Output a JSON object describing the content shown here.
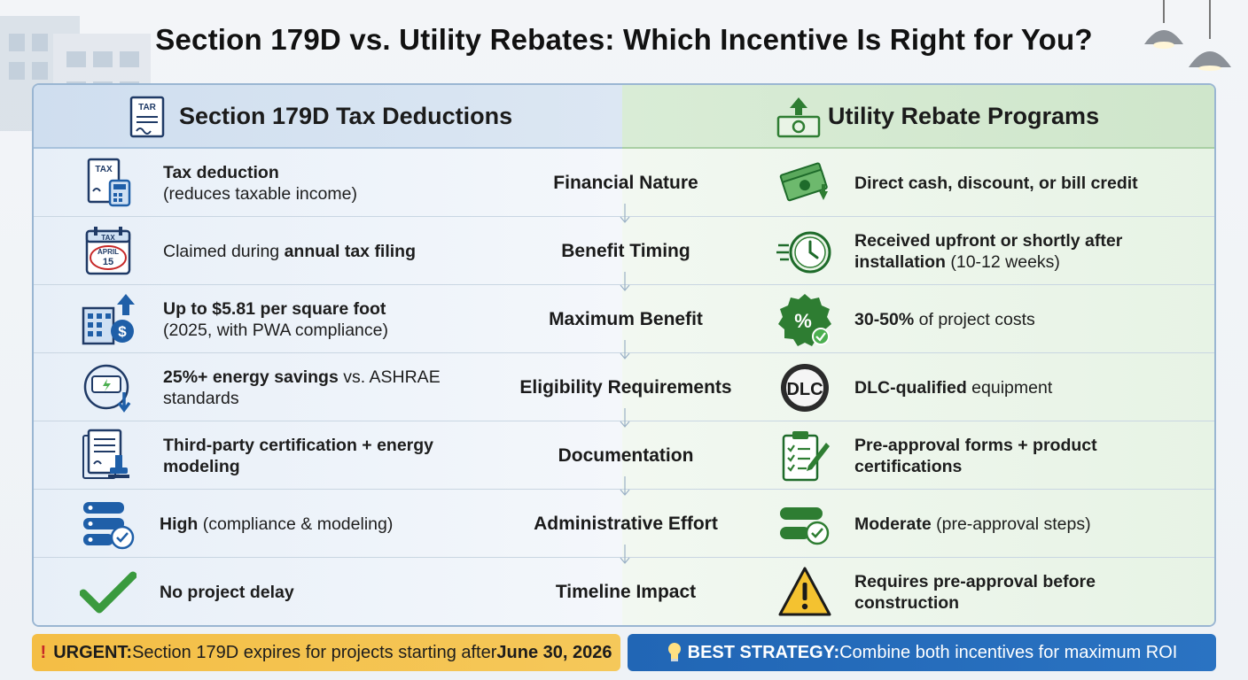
{
  "title": "Section 179D vs. Utility Rebates: Which Incentive Is Right for You?",
  "left_header": {
    "title": "Section 179D Tax Deductions",
    "icon": "tax-form-icon",
    "icon_label": "TAR"
  },
  "right_header": {
    "title": "Utility Rebate Programs",
    "icon": "cash-upload-icon"
  },
  "rows": [
    {
      "category": "Financial Nature",
      "left": {
        "bold": "Tax deduction",
        "normal": "(reduces taxable income)",
        "icon": "tax-calculator-icon",
        "icon_label": "TAX"
      },
      "right": {
        "bold": "Direct cash, discount, or bill credit",
        "normal": "",
        "icon": "cash-stack-icon"
      }
    },
    {
      "category": "Benefit Timing",
      "left": {
        "normal_before": "Claimed during ",
        "bold": "annual tax filing",
        "icon": "calendar-icon",
        "icon_label": "TAX",
        "icon_date": "APRIL",
        "icon_day": "15"
      },
      "right": {
        "bold": "Received upfront or shortly after",
        "bold2": "installation",
        "normal": " (10-12 weeks)",
        "icon": "fast-clock-icon"
      }
    },
    {
      "category": "Maximum Benefit",
      "left": {
        "bold": "Up to $5.81 per square foot",
        "normal": "(2025, with PWA compliance)",
        "icon": "building-dollar-icon"
      },
      "right": {
        "bold": "30-50%",
        "normal": " of project costs",
        "icon": "percent-badge-icon"
      }
    },
    {
      "category": "Eligibility Requirements",
      "left": {
        "bold": "25%+ energy savings",
        "normal": " vs. ASHRAE",
        "normal2": "standards",
        "icon": "energy-meter-icon"
      },
      "right": {
        "bold": "DLC-qualified",
        "normal": " equipment",
        "icon": "dlc-seal-icon",
        "icon_label": "DLC"
      },
      "_note": ""
    },
    {
      "category": "Documentation",
      "left": {
        "bold": "Third-party certification + energy",
        "bold2": "modeling",
        "icon": "certified-document-icon"
      },
      "right": {
        "bold": "Pre-approval forms + product",
        "bold2": "certifications",
        "icon": "clipboard-checklist-icon"
      }
    },
    {
      "category": "Administrative Effort",
      "left": {
        "bold": "High",
        "normal": " (compliance & modeling)",
        "icon": "server-check-icon"
      },
      "right": {
        "bold": "Moderate",
        "normal": " (pre-approval steps)",
        "icon": "toggle-check-icon"
      }
    },
    {
      "category": "Timeline Impact",
      "left": {
        "bold": "No project delay",
        "icon": "checkmark-icon"
      },
      "right": {
        "bold": "Requires pre-approval before",
        "bold2": "construction",
        "icon": "warning-icon"
      }
    }
  ],
  "banner_left": {
    "icon": "exclamation-icon",
    "icon_glyph": "!",
    "label": "URGENT:",
    "text": " Section 179D expires for projects starting after ",
    "date": "June 30, 2026"
  },
  "banner_right": {
    "icon": "lightbulb-icon",
    "label": "BEST STRATEGY:",
    "text": " Combine both incentives for maximum ROI"
  },
  "colors": {
    "left_accent": "#1f5fa8",
    "right_accent": "#2e8b3d",
    "urgent": "#f4be45",
    "strategy": "#2166b5"
  }
}
